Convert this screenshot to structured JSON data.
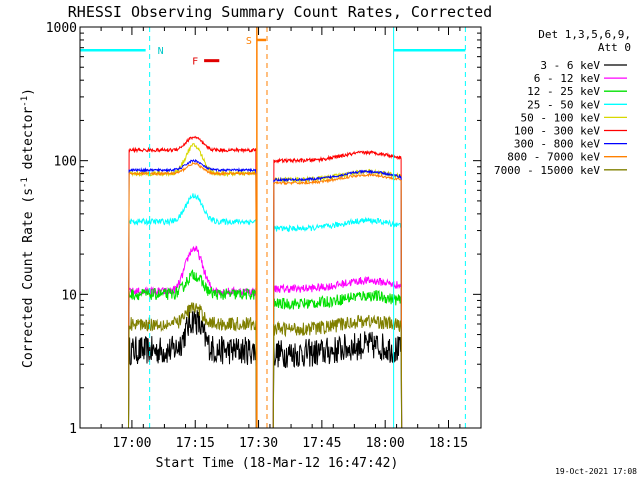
{
  "chart_data": {
    "type": "line",
    "title": "RHESSI Observing Summary Count Rates, Corrected",
    "xlabel": "Start Time (18-Mar-12 16:47:42)",
    "ylabel_main": "Corrected Count Rate (s",
    "ylabel_sup1": "-1",
    "ylabel_mid": " detector",
    "ylabel_sup2": "-1",
    "ylabel_end": ")",
    "yscale": "log",
    "ylim": [
      1,
      1000
    ],
    "xlim_minutes": [
      0,
      95
    ],
    "y_ticks": [
      {
        "value": 1,
        "label": "1"
      },
      {
        "value": 10,
        "label": "10"
      },
      {
        "value": 100,
        "label": "100"
      },
      {
        "value": 1000,
        "label": "1000"
      }
    ],
    "x_ticks": [
      {
        "minute": 12.3,
        "label": "17:00"
      },
      {
        "minute": 27.3,
        "label": "17:15"
      },
      {
        "minute": 42.3,
        "label": "17:30"
      },
      {
        "minute": 57.3,
        "label": "17:45"
      },
      {
        "minute": 72.3,
        "label": "18:00"
      },
      {
        "minute": 87.3,
        "label": "18:15"
      }
    ],
    "legend_header_1": "Det 1,3,5,6,9,",
    "legend_header_2": "Att 0",
    "series": [
      {
        "name": "3 - 6 keV",
        "color": "#000000",
        "level_a": 3.8,
        "level_b": 3.6,
        "peak": 6.5,
        "noise": 0.25
      },
      {
        "name": "6 - 12 keV",
        "color": "#ff00ff",
        "level_a": 10.5,
        "level_b": 11.0,
        "peak": 22,
        "noise": 0.07
      },
      {
        "name": "12 - 25 keV",
        "color": "#00e000",
        "level_a": 10.0,
        "level_b": 8.5,
        "peak": 14,
        "noise": 0.1
      },
      {
        "name": "25 - 50 keV",
        "color": "#00ffff",
        "level_a": 35,
        "level_b": 31,
        "peak": 55,
        "noise": 0.05
      },
      {
        "name": "50 - 100 keV",
        "color": "#d8d800",
        "level_a": 80,
        "level_b": 72,
        "peak": 130,
        "noise": 0.04
      },
      {
        "name": "100 - 300 keV",
        "color": "#ff0000",
        "level_a": 120,
        "level_b": 100,
        "peak": 150,
        "noise": 0.03
      },
      {
        "name": "300 - 800 keV",
        "color": "#0000ff",
        "level_a": 85,
        "level_b": 72,
        "peak": 100,
        "noise": 0.02
      },
      {
        "name": "800 - 7000 keV",
        "color": "#ff8000",
        "level_a": 80,
        "level_b": 68,
        "peak": 95,
        "noise": 0.02
      },
      {
        "name": "7000 - 15000 keV",
        "color": "#808000",
        "level_a": 6.0,
        "level_b": 5.5,
        "peak": 8,
        "noise": 0.12
      }
    ],
    "segments_minutes": [
      [
        11.5,
        41.8
      ],
      [
        45.8,
        76.2
      ]
    ],
    "flare_peak_minute": 27,
    "annotations": {
      "night_label": "N",
      "flare_label": "F",
      "saa_label": "S",
      "night_lines_minutes": [
        0,
        16.5,
        74.3,
        91.3
      ],
      "night_bar_level": 670,
      "saa_lines_minutes": [
        41.9,
        44.3
      ],
      "saa_bar_level": 800,
      "flare_bar_minutes": [
        29.4,
        33.0
      ],
      "flare_bar_level": 560
    },
    "footer_date": "19-Oct-2021 17:08"
  }
}
